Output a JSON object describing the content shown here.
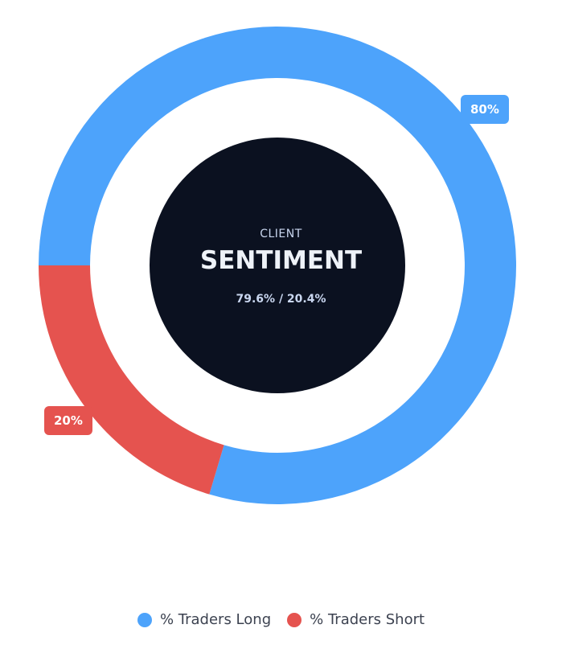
{
  "chart_data": {
    "type": "pie",
    "donut": true,
    "categories": [
      "% Traders Long",
      "% Traders Short"
    ],
    "values": [
      79.6,
      20.4
    ],
    "data_labels": [
      "80%",
      "20%"
    ],
    "colors": [
      "#4da3fb",
      "#e5534f"
    ],
    "legend_position": "bottom",
    "center": {
      "eyebrow": "CLIENT",
      "title": "SENTIMENT",
      "subtitle": "79.6% / 20.4%",
      "background": "#0b1120"
    }
  }
}
